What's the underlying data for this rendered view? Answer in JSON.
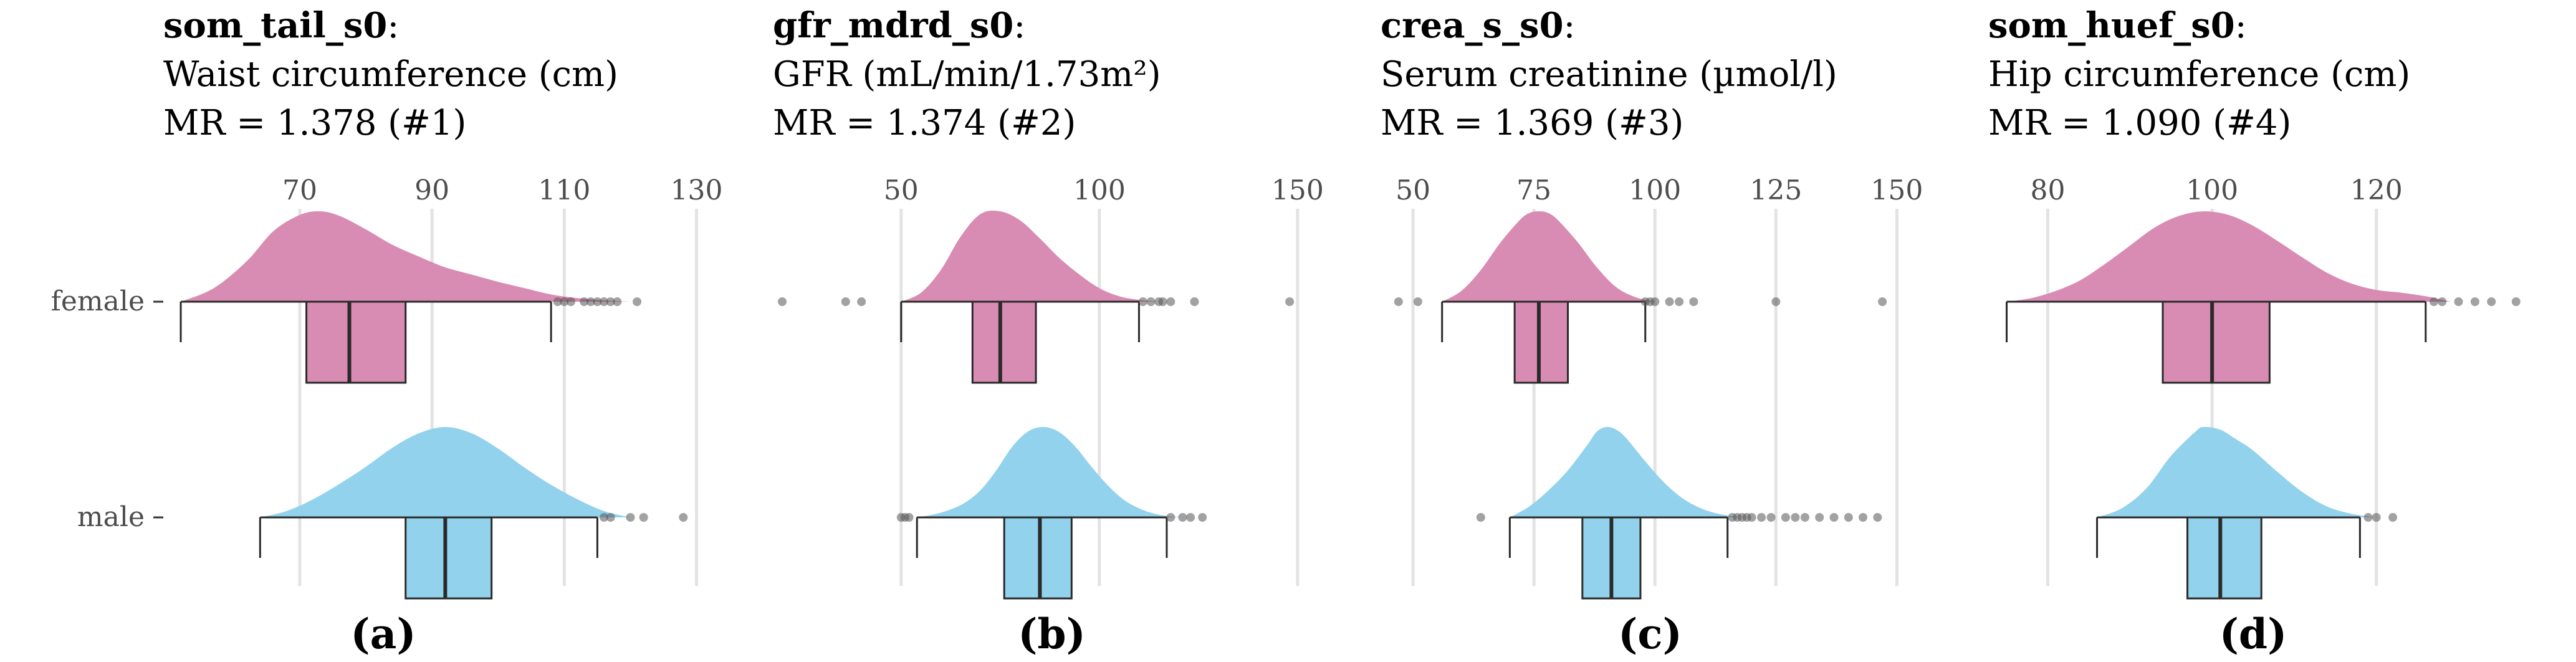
{
  "colors": {
    "female": "#d98cb3",
    "male": "#92d2ec",
    "grid": "#e3e3e3",
    "line": "#2a2a2a",
    "outlier": "#555555"
  },
  "chart_data": [
    {
      "type": "raincloud",
      "code": "som_tail_s0",
      "title": "Waist circumference (cm)",
      "mr": "MR = 1.378 (#1)",
      "panel_label": "(a)",
      "ticks": [
        70,
        90,
        110,
        130
      ],
      "xlim": [
        52,
        134
      ],
      "groups": [
        {
          "name": "female",
          "box": {
            "whisker_low": 52,
            "q1": 71,
            "median": 77.5,
            "q3": 86,
            "whisker_high": 108
          },
          "density": {
            "x": [
              52,
              57,
              62,
              66,
              70,
              73,
              76,
              80,
              84,
              88,
              92,
              96,
              100,
              104,
              108,
              112,
              116,
              120
            ],
            "y": [
              0.0,
              0.15,
              0.45,
              0.78,
              0.96,
              1.0,
              0.95,
              0.8,
              0.63,
              0.5,
              0.38,
              0.3,
              0.22,
              0.15,
              0.08,
              0.04,
              0.015,
              0.0
            ]
          },
          "outliers": [
            109,
            110,
            111,
            113,
            114,
            115,
            116,
            117,
            118,
            121
          ]
        },
        {
          "name": "male",
          "box": {
            "whisker_low": 64,
            "q1": 86,
            "median": 92,
            "q3": 99,
            "whisker_high": 115
          },
          "density": {
            "x": [
              64,
              68,
              72,
              76,
              80,
              84,
              88,
              92,
              96,
              100,
              104,
              108,
              112,
              116,
              120
            ],
            "y": [
              0.0,
              0.07,
              0.2,
              0.37,
              0.56,
              0.77,
              0.93,
              1.0,
              0.93,
              0.76,
              0.55,
              0.36,
              0.2,
              0.07,
              0.0
            ]
          },
          "outliers": [
            116,
            117,
            120,
            122,
            128
          ]
        }
      ]
    },
    {
      "type": "raincloud",
      "code": "gfr_mdrd_s0",
      "title": "GFR (mL/min/1.73m²)",
      "mr": "MR = 1.374 (#2)",
      "panel_label": "(b)",
      "ticks": [
        50,
        100,
        150
      ],
      "xlim": [
        20,
        156
      ],
      "groups": [
        {
          "name": "female",
          "box": {
            "whisker_low": 50,
            "q1": 68,
            "median": 75,
            "q3": 84,
            "whisker_high": 110
          },
          "density": {
            "x": [
              50,
              55,
              60,
              65,
              70,
              75,
              80,
              85,
              90,
              95,
              100,
              105,
              110,
              115
            ],
            "y": [
              0.0,
              0.1,
              0.35,
              0.72,
              0.97,
              1.0,
              0.9,
              0.7,
              0.48,
              0.3,
              0.15,
              0.06,
              0.02,
              0.0
            ]
          },
          "outliers": [
            20,
            36,
            40,
            111,
            113,
            115,
            116,
            118,
            124,
            148
          ]
        },
        {
          "name": "male",
          "box": {
            "whisker_low": 54,
            "q1": 76,
            "median": 85,
            "q3": 93,
            "whisker_high": 117
          },
          "density": {
            "x": [
              54,
              58,
              62,
              66,
              70,
              74,
              78,
              82,
              86,
              90,
              94,
              98,
              102,
              106,
              110,
              114,
              118,
              122
            ],
            "y": [
              0.0,
              0.03,
              0.08,
              0.16,
              0.3,
              0.52,
              0.78,
              0.95,
              1.0,
              0.94,
              0.78,
              0.56,
              0.36,
              0.2,
              0.1,
              0.04,
              0.01,
              0.0
            ]
          },
          "outliers": [
            50,
            51,
            52,
            118,
            121,
            123,
            126
          ]
        }
      ]
    },
    {
      "type": "raincloud",
      "code": "crea_s_s0",
      "title": "Serum creatinine (µmol/l)",
      "mr": "MR = 1.369 (#3)",
      "panel_label": "(c)",
      "ticks": [
        50,
        75,
        100,
        125,
        150
      ],
      "xlim": [
        42,
        156
      ],
      "groups": [
        {
          "name": "female",
          "box": {
            "whisker_low": 56,
            "q1": 71,
            "median": 76,
            "q3": 82,
            "whisker_high": 98
          },
          "density": {
            "x": [
              56,
              60,
              64,
              68,
              72,
              74,
              76,
              78,
              80,
              84,
              88,
              92,
              96,
              100
            ],
            "y": [
              0.0,
              0.12,
              0.35,
              0.65,
              0.9,
              0.98,
              1.0,
              0.98,
              0.9,
              0.66,
              0.38,
              0.16,
              0.05,
              0.0
            ]
          },
          "outliers": [
            47,
            51,
            98,
            99,
            100,
            103,
            105,
            108,
            125,
            147
          ]
        },
        {
          "name": "male",
          "box": {
            "whisker_low": 70,
            "q1": 85,
            "median": 91,
            "q3": 97,
            "whisker_high": 115
          },
          "density": {
            "x": [
              70,
              74,
              78,
              82,
              86,
              88,
              90,
              92,
              94,
              98,
              102,
              106,
              110,
              114,
              118
            ],
            "y": [
              0.0,
              0.12,
              0.3,
              0.52,
              0.8,
              0.95,
              1.0,
              0.97,
              0.88,
              0.62,
              0.38,
              0.2,
              0.09,
              0.03,
              0.0
            ]
          },
          "outliers": [
            64,
            116,
            117,
            118,
            119,
            120,
            122,
            124,
            127,
            129,
            131,
            134,
            137,
            140,
            143,
            146
          ]
        }
      ]
    },
    {
      "type": "raincloud",
      "code": "som_huef_s0",
      "title": "Hip circumference (cm)",
      "mr": "MR = 1.090 (#4)",
      "panel_label": "(d)",
      "ticks": [
        80,
        100,
        120
      ],
      "xlim": [
        72,
        138
      ],
      "groups": [
        {
          "name": "female",
          "box": {
            "whisker_low": 75,
            "q1": 94,
            "median": 100,
            "q3": 107,
            "whisker_high": 126
          },
          "density": {
            "x": [
              75,
              78,
              81,
              84,
              87,
              90,
              93,
              96,
              99,
              102,
              105,
              108,
              111,
              114,
              117,
              120,
              123,
              126,
              129
            ],
            "y": [
              0.0,
              0.04,
              0.12,
              0.24,
              0.42,
              0.62,
              0.82,
              0.95,
              1.0,
              0.96,
              0.84,
              0.67,
              0.49,
              0.32,
              0.2,
              0.13,
              0.1,
              0.06,
              0.0
            ]
          },
          "outliers": [
            127,
            128,
            130,
            132,
            134,
            137
          ]
        },
        {
          "name": "male",
          "box": {
            "whisker_low": 86,
            "q1": 97,
            "median": 101,
            "q3": 106,
            "whisker_high": 118
          },
          "density": {
            "x": [
              86,
              89,
              92,
              95,
              98,
              99,
              101,
              103,
              105,
              108,
              111,
              114,
              117,
              120
            ],
            "y": [
              0.0,
              0.1,
              0.32,
              0.68,
              0.95,
              1.0,
              0.97,
              0.86,
              0.74,
              0.5,
              0.28,
              0.12,
              0.04,
              0.0
            ]
          },
          "outliers": [
            119,
            120,
            122
          ]
        }
      ]
    }
  ]
}
